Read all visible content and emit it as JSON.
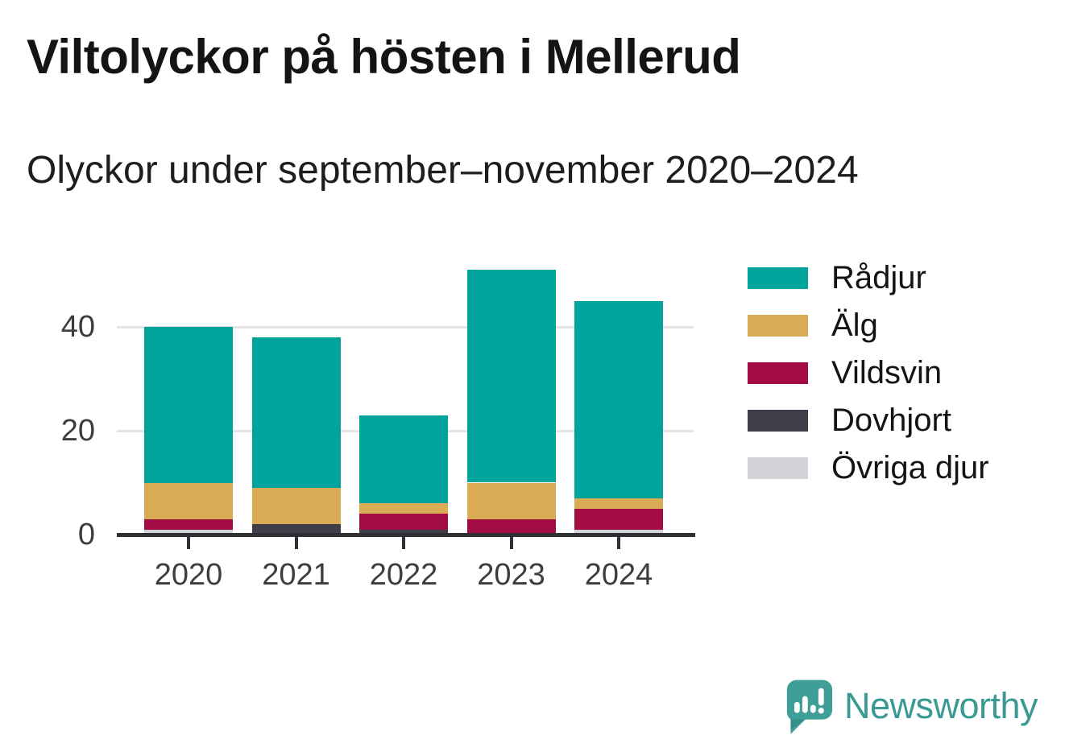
{
  "header": {
    "title": "Viltolyckor på hösten i Mellerud",
    "subtitle": "Olyckor under september–november 2020–2024"
  },
  "brand": {
    "name": "Newsworthy",
    "logo_icon": "speech-bubble-bar-chart-exclamation",
    "logo_color": "#3f9e97"
  },
  "colors": {
    "background": "#ffffff",
    "title_text": "#141414",
    "axis_text": "#3d3d3d",
    "gridline": "#e4e4e7",
    "axis_line": "#2f3036"
  },
  "chart_data": {
    "type": "bar",
    "stacked": true,
    "title": "Viltolyckor på hösten i Mellerud",
    "subtitle": "Olyckor under september–november 2020–2024",
    "categories": [
      "2020",
      "2021",
      "2022",
      "2023",
      "2024"
    ],
    "series": [
      {
        "name": "Rådjur",
        "color": "#00a49a",
        "values": [
          30,
          29,
          17,
          41,
          38
        ]
      },
      {
        "name": "Älg",
        "color": "#d9ab54",
        "values": [
          7,
          7,
          2,
          7,
          2
        ]
      },
      {
        "name": "Vildsvin",
        "color": "#a30b45",
        "values": [
          2,
          0,
          3,
          3,
          4
        ]
      },
      {
        "name": "Dovhjort",
        "color": "#3e3e49",
        "values": [
          0,
          2,
          1,
          0,
          0
        ]
      },
      {
        "name": "Övriga djur",
        "color": "#d2d2d9",
        "values": [
          1,
          0,
          0,
          0,
          1
        ]
      }
    ],
    "totals": [
      40,
      38,
      23,
      51,
      45
    ],
    "stack_order_bottom_to_top": [
      "Övriga djur",
      "Dovhjort",
      "Vildsvin",
      "Älg",
      "Rådjur"
    ],
    "xlabel": "",
    "ylabel": "",
    "yticks": [
      0,
      20,
      40
    ],
    "ylim": [
      0,
      51
    ],
    "grid": "horizontal",
    "legend_position": "right"
  }
}
